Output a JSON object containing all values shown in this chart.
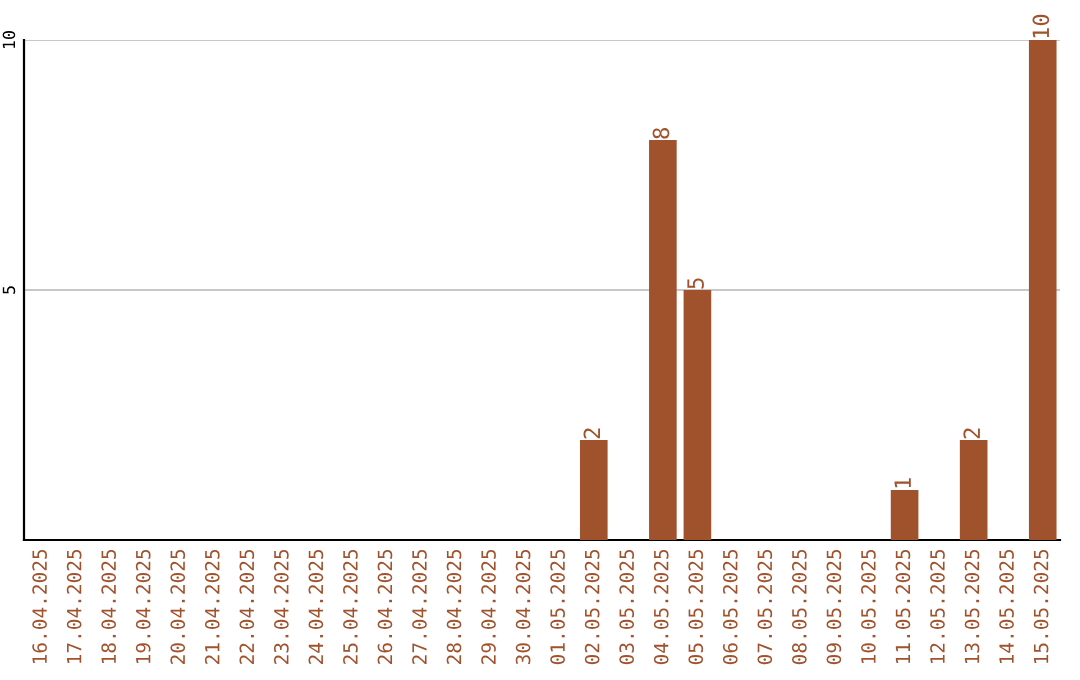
{
  "chart_data": {
    "type": "bar",
    "categories": [
      "16.04.2025",
      "17.04.2025",
      "18.04.2025",
      "19.04.2025",
      "20.04.2025",
      "21.04.2025",
      "22.04.2025",
      "23.04.2025",
      "24.04.2025",
      "25.04.2025",
      "26.04.2025",
      "27.04.2025",
      "28.04.2025",
      "29.04.2025",
      "30.04.2025",
      "01.05.2025",
      "02.05.2025",
      "03.05.2025",
      "04.05.2025",
      "05.05.2025",
      "06.05.2025",
      "07.05.2025",
      "08.05.2025",
      "09.05.2025",
      "10.05.2025",
      "11.05.2025",
      "12.05.2025",
      "13.05.2025",
      "14.05.2025",
      "15.05.2025"
    ],
    "values": [
      0,
      0,
      0,
      0,
      0,
      0,
      0,
      0,
      0,
      0,
      0,
      0,
      0,
      0,
      0,
      0,
      2,
      0,
      8,
      5,
      0,
      0,
      0,
      0,
      0,
      1,
      0,
      2,
      0,
      10
    ],
    "value_labels": [
      null,
      null,
      null,
      null,
      null,
      null,
      null,
      null,
      null,
      null,
      null,
      null,
      null,
      null,
      null,
      null,
      "2",
      null,
      "8",
      "5",
      null,
      null,
      null,
      null,
      null,
      "1",
      null,
      "2",
      null,
      "10"
    ],
    "color": "#a0522d",
    "ylim": [
      0,
      10
    ],
    "yticks": [
      5,
      10
    ],
    "grid": "y"
  }
}
